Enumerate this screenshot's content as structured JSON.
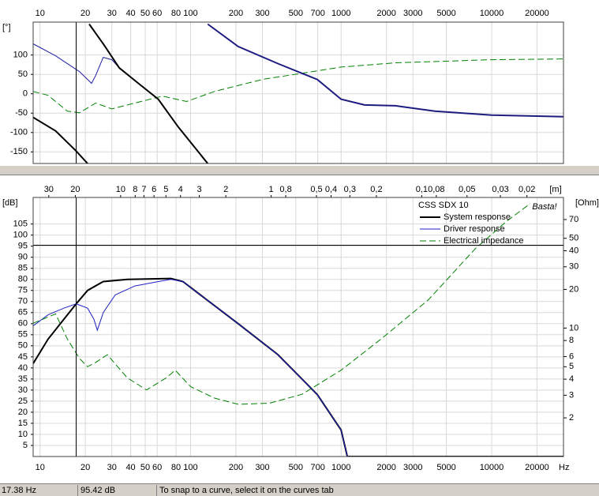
{
  "chart_data": [
    {
      "type": "line",
      "y_unit": "[°]",
      "xscale": "log",
      "xlim": [
        9,
        30000
      ],
      "xticks": [
        10,
        20,
        30,
        40,
        50,
        60,
        80,
        100,
        200,
        300,
        500,
        700,
        1000,
        2000,
        3000,
        5000,
        10000,
        20000
      ],
      "ylim": [
        -180,
        185
      ],
      "yticks": [
        -150,
        -100,
        -50,
        0,
        50,
        100
      ],
      "grid": true,
      "series": [
        {
          "color": "#2020a0",
          "dash": false,
          "width": 1,
          "x": [
            9,
            12.7,
            18.3,
            22,
            23.4,
            26.3,
            30,
            33.6,
            45,
            61,
            83,
            130
          ],
          "values": [
            129,
            98,
            57,
            27,
            47,
            94,
            88,
            67,
            27,
            -14,
            -86,
            -180
          ]
        },
        {
          "color": "#008000",
          "dash": true,
          "width": 1,
          "x": [
            9,
            11.3,
            15.2,
            18.3,
            23.4,
            30,
            42.6,
            65,
            94,
            144,
            300,
            1000,
            2300,
            10000,
            30000
          ],
          "values": [
            6,
            -4,
            -45,
            -49,
            -24,
            -39,
            -24,
            -6,
            -20,
            6,
            37,
            69,
            80,
            88,
            90
          ]
        },
        {
          "color": "#000000",
          "dash": false,
          "width": 2,
          "x": [
            9,
            12.7,
            17.3,
            20.7,
            21,
            21.2,
            26.3,
            33.6,
            45,
            61,
            83,
            130
          ],
          "values": [
            -61,
            -96,
            -147,
            -180,
            null,
            180,
            129,
            67,
            27,
            -14,
            -86,
            -180
          ]
        },
        {
          "color": "#1c1c80",
          "dash": false,
          "width": 2,
          "x": [
            130,
            207,
            380,
            694,
            1000,
            1430,
            2300,
            4200,
            10000,
            30000
          ],
          "values": [
            180,
            122,
            78,
            37,
            -14,
            -29,
            -31,
            -45,
            -55,
            -59
          ]
        }
      ]
    },
    {
      "type": "line",
      "y_unit": "[dB]",
      "y2_unit": "[Ohm]",
      "x_unit": "Hz",
      "x2_unit": "[m]",
      "xscale": "log",
      "xlim": [
        9,
        30000
      ],
      "xticks": [
        10,
        20,
        30,
        40,
        50,
        60,
        80,
        100,
        200,
        300,
        500,
        700,
        1000,
        2000,
        3000,
        5000,
        10000,
        20000
      ],
      "x2ticks": [
        30,
        20,
        10,
        8,
        7,
        6,
        5,
        4,
        3,
        2,
        1,
        {
          "value": 0.8,
          "label": "0,8"
        },
        {
          "value": 0.5,
          "label": "0,5"
        },
        {
          "value": 0.4,
          "label": "0,4"
        },
        {
          "value": 0.3,
          "label": "0,3"
        },
        {
          "value": 0.2,
          "label": "0,2"
        },
        {
          "value": 0.1,
          "label": "0,1"
        },
        {
          "value": 0.08,
          "label": "0,08"
        },
        {
          "value": 0.05,
          "label": "0,05"
        },
        {
          "value": 0.03,
          "label": "0,03"
        },
        {
          "value": 0.02,
          "label": "0,02"
        }
      ],
      "ylim": [
        0,
        117
      ],
      "yticks": [
        5,
        10,
        15,
        20,
        25,
        30,
        35,
        40,
        45,
        50,
        55,
        60,
        65,
        70,
        75,
        80,
        85,
        90,
        95,
        100,
        105
      ],
      "y2scale": "log",
      "y2lim": [
        1,
        104
      ],
      "y2ticks": [
        2,
        3,
        4,
        5,
        6,
        8,
        10,
        20,
        30,
        40,
        50,
        70
      ],
      "grid": true,
      "legend_title": "CSS SDX 10",
      "watermark": "Basta!",
      "cursor": {
        "x": {
          "value": 17.38,
          "label": "17.38 Hz"
        },
        "y": {
          "value": 95.42,
          "label": "95.42 dB"
        }
      },
      "series": [
        {
          "name": "System response",
          "color": "#000000",
          "dash": false,
          "width": 2,
          "x": [
            9,
            11.3,
            14.4,
            17.4,
            20.7,
            26.3,
            38,
            74,
            89,
            127,
            207,
            380,
            694,
            1000,
            1100,
            30000
          ],
          "values": [
            42,
            53,
            62,
            69,
            75,
            79,
            80,
            80.4,
            79,
            71,
            60,
            46,
            28,
            12,
            0,
            0
          ]
        },
        {
          "name": "Driver response",
          "color": "#2020c0",
          "dash": false,
          "width": 1,
          "x": [
            9,
            11.3,
            14.4,
            17.4,
            20.7,
            22.8,
            24,
            26.3,
            31.6,
            42.6,
            61,
            74,
            89,
            127,
            207,
            380,
            694,
            1000,
            1100,
            30000
          ],
          "values": [
            59,
            64,
            67,
            69,
            67,
            62,
            57,
            65,
            73,
            77,
            79,
            80,
            79,
            71,
            60,
            46,
            28,
            12,
            0,
            0
          ]
        },
        {
          "name": "Electrical impedance",
          "color": "#008000",
          "dash": true,
          "width": 1,
          "axis": "y2",
          "x": [
            9,
            12.7,
            15.2,
            18.3,
            20.7,
            23.4,
            28,
            38,
            51,
            69,
            79,
            100,
            144,
            207,
            335,
            550,
            1000,
            1840,
            3800,
            7800,
            12600,
            18000
          ],
          "values": [
            10.9,
            12.9,
            8.2,
            5.8,
            5.0,
            5.4,
            6.2,
            4.1,
            3.3,
            4.1,
            4.7,
            3.5,
            2.85,
            2.55,
            2.6,
            3.05,
            4.7,
            8.2,
            16.6,
            41.6,
            68,
            93
          ]
        }
      ]
    }
  ],
  "status_bar": {
    "hint": "To snap to a curve, select it on the curves tab"
  }
}
